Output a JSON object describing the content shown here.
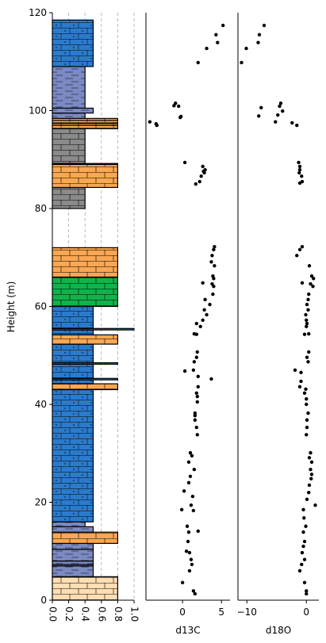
{
  "chart_data": [
    {
      "type": "column",
      "ylabel": "Height (m)",
      "xlim": [
        0,
        1
      ],
      "ylim": [
        0,
        120
      ],
      "xticks": [
        {
          "value": 0,
          "label": "0.0"
        },
        0.2,
        0.4,
        0.6,
        0.8,
        {
          "value": 1,
          "label": "1.0"
        }
      ],
      "yticks": [
        0,
        20,
        40,
        60,
        80,
        100,
        120
      ],
      "grid": true,
      "layers": [
        {
          "bottom": 0,
          "top": 4.8,
          "width": 0.8,
          "color": "#ffdeb3",
          "pattern": "brick"
        },
        {
          "bottom": 4.8,
          "top": 7.0,
          "width": 0.5,
          "color": "#7b8ac3",
          "pattern": "dash"
        },
        {
          "bottom": 7.0,
          "top": 7.3,
          "width": 0.5,
          "color": "#7b8ac3",
          "pattern": "dash"
        },
        {
          "bottom": 7.3,
          "top": 8.0,
          "width": 0.5,
          "color": "#7b8ac3",
          "pattern": "dash"
        },
        {
          "bottom": 8.0,
          "top": 10.4,
          "width": 0.5,
          "color": "#7b8ac3",
          "pattern": "dash"
        },
        {
          "bottom": 10.4,
          "top": 11.6,
          "width": 0.5,
          "color": "#7b8ac3",
          "pattern": "dash"
        },
        {
          "bottom": 11.6,
          "top": 13.9,
          "width": 0.8,
          "color": "#f9a752",
          "pattern": "brick"
        },
        {
          "bottom": 13.9,
          "top": 15.0,
          "width": 0.5,
          "color": "#7b8ac3",
          "pattern": "dash"
        },
        {
          "bottom": 15.0,
          "top": 16.0,
          "width": 0.4,
          "color": "#7b8ac3",
          "pattern": "dash"
        },
        {
          "bottom": 16.0,
          "top": 43.0,
          "width": 0.5,
          "color": "#2b7bcc",
          "pattern": "brick-dot"
        },
        {
          "bottom": 43.0,
          "top": 44.2,
          "width": 0.8,
          "color": "#f9a752",
          "pattern": "brick"
        },
        {
          "bottom": 44.2,
          "top": 45.0,
          "width": 0.5,
          "color": "#2b7bcc",
          "pattern": "brick-dot"
        },
        {
          "bottom": 45.0,
          "top": 45.3,
          "width": 0.8,
          "color": "#2b7bcc",
          "pattern": "brick-dot"
        },
        {
          "bottom": 45.3,
          "top": 48.2,
          "width": 0.5,
          "color": "#2b7bcc",
          "pattern": "brick-dot"
        },
        {
          "bottom": 48.2,
          "top": 48.5,
          "width": 0.8,
          "color": "#2b7bcc",
          "pattern": "brick-dot"
        },
        {
          "bottom": 48.5,
          "top": 52.3,
          "width": 0.5,
          "color": "#2b7bcc",
          "pattern": "brick-dot"
        },
        {
          "bottom": 52.3,
          "top": 54.2,
          "width": 0.8,
          "color": "#f9a752",
          "pattern": "brick"
        },
        {
          "bottom": 54.2,
          "top": 55.2,
          "width": 0.5,
          "color": "#2b7bcc",
          "pattern": "brick-dot"
        },
        {
          "bottom": 55.2,
          "top": 55.5,
          "width": 1.0,
          "color": "#2b7bcc",
          "pattern": "brick-dot"
        },
        {
          "bottom": 55.5,
          "top": 60.0,
          "width": 0.5,
          "color": "#2b7bcc",
          "pattern": "brick-dot"
        },
        {
          "bottom": 60.0,
          "top": 66.0,
          "width": 0.8,
          "color": "#12b24b",
          "pattern": "brick"
        },
        {
          "bottom": 66.0,
          "top": 72.0,
          "width": 0.8,
          "color": "#f9a752",
          "pattern": "brick"
        },
        {
          "bottom": 80.0,
          "top": 84.3,
          "width": 0.4,
          "color": "#8a8a8a",
          "pattern": "brick"
        },
        {
          "bottom": 84.3,
          "top": 89.0,
          "width": 0.8,
          "color": "#f9a752",
          "pattern": "brick"
        },
        {
          "bottom": 89.0,
          "top": 89.2,
          "width": 0.8,
          "color": "#12b24b",
          "pattern": "brick"
        },
        {
          "bottom": 89.2,
          "top": 96.3,
          "width": 0.4,
          "color": "#8a8a8a",
          "pattern": "brick"
        },
        {
          "bottom": 96.3,
          "top": 97.0,
          "width": 0.8,
          "color": "#f9a752",
          "pattern": "brick"
        },
        {
          "bottom": 97.0,
          "top": 97.4,
          "width": 0.8,
          "color": "#f9a752",
          "pattern": "brick"
        },
        {
          "bottom": 97.4,
          "top": 98.0,
          "width": 0.8,
          "color": "#f9a752",
          "pattern": "brick"
        },
        {
          "bottom": 98.0,
          "top": 98.4,
          "width": 0.8,
          "color": "#f9a752",
          "pattern": "brick"
        },
        {
          "bottom": 98.4,
          "top": 99.5,
          "width": 0.4,
          "color": "#7b8ac3",
          "pattern": "dash"
        },
        {
          "bottom": 99.5,
          "top": 100.5,
          "width": 0.5,
          "color": "#7b8ac3",
          "pattern": "dash"
        },
        {
          "bottom": 100.5,
          "top": 109.0,
          "width": 0.4,
          "color": "#7b8ac3",
          "pattern": "dash"
        },
        {
          "bottom": 109.0,
          "top": 118.5,
          "width": 0.5,
          "color": "#2b7bcc",
          "pattern": "brick-dot"
        }
      ]
    },
    {
      "type": "scatter",
      "xlabel": "d13C",
      "xlim": [
        -4.7,
        6.1
      ],
      "ylim": [
        0,
        120
      ],
      "xticks": [
        0,
        5
      ],
      "color": "#000000",
      "x": [
        5.2,
        4.3,
        4.5,
        3.1,
        2.0,
        -0.9,
        -1.1,
        -0.5,
        -0.2,
        -0.3,
        -4.2,
        -3.4,
        -3.3,
        0.3,
        2.6,
        2.9,
        2.7,
        2.8,
        2.4,
        2.2,
        1.7,
        4.1,
        4.0,
        3.8,
        3.7,
        4.1,
        3.9,
        4.0,
        2.6,
        3.8,
        4.0,
        3.9,
        2.9,
        3.5,
        2.8,
        3.1,
        2.6,
        1.8,
        2.3,
        1.8,
        1.5,
        1.9,
        1.8,
        1.5,
        1.4,
        0.3,
        2.0,
        3.7,
        2.0,
        1.8,
        1.9,
        1.9,
        1.6,
        1.6,
        1.6,
        1.8,
        1.9,
        1.0,
        1.2,
        0.8,
        1.5,
        1.0,
        0.8,
        0.2,
        1.3,
        1.1,
        -0.1,
        1.4,
        0.6,
        2.0,
        0.8,
        0.7,
        0.5,
        0.9,
        1.1,
        1.2,
        0.9,
        0.0,
        1.4,
        1.6
      ],
      "values": [
        117.4,
        115.5,
        113.9,
        112.7,
        109.8,
        101.5,
        101.0,
        100.9,
        98.8,
        98.6,
        97.7,
        97.3,
        97.0,
        89.4,
        88.6,
        87.9,
        87.6,
        87.3,
        86.6,
        85.5,
        85.0,
        72.2,
        71.6,
        70.4,
        69.1,
        68.3,
        66.2,
        65.7,
        64.8,
        64.6,
        64.1,
        62.5,
        61.4,
        60.4,
        59.3,
        58.3,
        57.2,
        56.5,
        55.9,
        54.3,
        54.4,
        50.7,
        49.6,
        48.7,
        47.0,
        46.8,
        45.7,
        45.2,
        43.6,
        42.3,
        41.6,
        40.5,
        38.2,
        37.7,
        36.8,
        35.3,
        33.8,
        30.1,
        29.5,
        28.2,
        26.7,
        25.3,
        24.0,
        22.3,
        21.2,
        19.4,
        18.5,
        18.3,
        15.1,
        14.1,
        13.9,
        12.0,
        10.0,
        9.7,
        8.3,
        7.3,
        6.0,
        3.6,
        1.9,
        1.3
      ]
    },
    {
      "type": "scatter",
      "xlabel": "d18O",
      "xlim": [
        -11.5,
        2.1
      ],
      "ylim": [
        0,
        120
      ],
      "xticks": [
        {
          "value": -10,
          "label": "−10"
        },
        0
      ],
      "color": "#000000",
      "x": [
        -7.1,
        -7.9,
        -8.1,
        -10.1,
        -10.9,
        -4.3,
        -4.5,
        -7.6,
        -4.0,
        -8.0,
        -4.8,
        -5.2,
        -2.4,
        -1.6,
        -1.3,
        -1.1,
        -1.1,
        -1.2,
        -0.8,
        -0.7,
        -1.1,
        -0.7,
        -1.1,
        -1.6,
        0.5,
        0.9,
        1.2,
        -0.7,
        0.7,
        1.1,
        0.4,
        0.3,
        0.1,
        0.3,
        -0.1,
        0.0,
        0.1,
        0.0,
        -0.3,
        0.4,
        0.4,
        0.1,
        0.3,
        -1.9,
        -0.9,
        -0.9,
        -1.1,
        -0.1,
        -0.3,
        0.0,
        0.0,
        0.3,
        0.1,
        0.1,
        0.0,
        0.7,
        0.5,
        0.9,
        0.7,
        0.9,
        0.8,
        0.5,
        0.4,
        0.1,
        1.5,
        -0.5,
        -0.4,
        -0.1,
        -0.5,
        -0.3,
        -0.5,
        -0.7,
        -0.3,
        -0.8,
        -1.1,
        -0.3,
        0.0,
        0.0
      ],
      "values": [
        117.4,
        115.5,
        113.9,
        112.7,
        109.8,
        101.5,
        100.9,
        100.6,
        99.9,
        98.9,
        99.1,
        97.7,
        97.5,
        97.0,
        89.4,
        88.6,
        87.9,
        87.3,
        86.6,
        85.5,
        85.2,
        72.2,
        71.6,
        70.4,
        68.3,
        66.2,
        65.7,
        64.8,
        64.6,
        64.1,
        62.5,
        61.4,
        60.4,
        59.3,
        58.3,
        57.2,
        56.5,
        55.9,
        54.3,
        54.4,
        50.7,
        49.6,
        48.7,
        47.0,
        46.5,
        44.7,
        43.6,
        43.1,
        42.3,
        41.1,
        40.0,
        38.2,
        36.8,
        35.3,
        33.8,
        30.1,
        29.1,
        28.2,
        26.7,
        25.7,
        24.8,
        23.5,
        22.0,
        20.6,
        19.4,
        18.5,
        16.8,
        15.1,
        13.9,
        12.0,
        11.0,
        9.7,
        8.3,
        7.3,
        6.0,
        3.6,
        1.9,
        1.3
      ]
    }
  ]
}
